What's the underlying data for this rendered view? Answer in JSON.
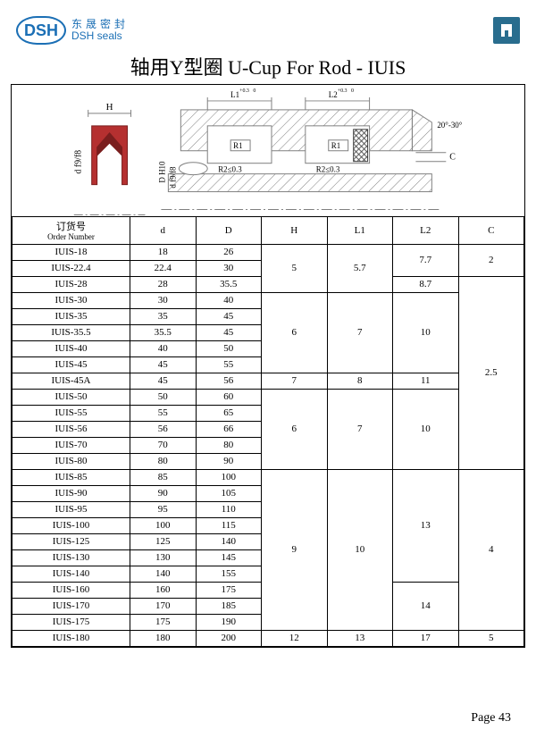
{
  "brand": {
    "abbr": "DSH",
    "cn": "东晟密封",
    "en": "DSH seals"
  },
  "title": "轴用Y型圈 U-Cup For Rod - IUIS",
  "pageLabel": "Page 43",
  "diagram": {
    "labels": {
      "H": "H",
      "d": "d",
      "D": "D H10",
      "Df9": "d   f9/f8",
      "L1": "L1",
      "L2": "L2",
      "tolL1": "+0.3\n  0",
      "tolL2": "+0.3\n  0",
      "R1": "R1",
      "R2a": "R2≤0.3",
      "R2b": "R2≤0.3",
      "angle": "20°-30°",
      "C": "C"
    },
    "colors": {
      "stroke": "#808080",
      "sealBody": "#b53030",
      "sealBodyDark": "#7a1e1e",
      "hatch": "#808080",
      "backupRingFill": "#ffffff"
    }
  },
  "table": {
    "headers": {
      "order_cn": "订货号",
      "order_en": "Order Number",
      "d": "d",
      "D": "D",
      "H": "H",
      "L1": "L1",
      "L2": "L2",
      "C": "C"
    },
    "rows": [
      {
        "order": "IUIS-18",
        "d": "18",
        "D": "26"
      },
      {
        "order": "IUIS-22.4",
        "d": "22.4",
        "D": "30"
      },
      {
        "order": "IUIS-28",
        "d": "28",
        "D": "35.5"
      },
      {
        "order": "IUIS-30",
        "d": "30",
        "D": "40"
      },
      {
        "order": "IUIS-35",
        "d": "35",
        "D": "45"
      },
      {
        "order": "IUIS-35.5",
        "d": "35.5",
        "D": "45"
      },
      {
        "order": "IUIS-40",
        "d": "40",
        "D": "50"
      },
      {
        "order": "IUIS-45",
        "d": "45",
        "D": "55"
      },
      {
        "order": "IUIS-45A",
        "d": "45",
        "D": "56"
      },
      {
        "order": "IUIS-50",
        "d": "50",
        "D": "60"
      },
      {
        "order": "IUIS-55",
        "d": "55",
        "D": "65"
      },
      {
        "order": "IUIS-56",
        "d": "56",
        "D": "66"
      },
      {
        "order": "IUIS-70",
        "d": "70",
        "D": "80"
      },
      {
        "order": "IUIS-80",
        "d": "80",
        "D": "90"
      },
      {
        "order": "IUIS-85",
        "d": "85",
        "D": "100"
      },
      {
        "order": "IUIS-90",
        "d": "90",
        "D": "105"
      },
      {
        "order": "IUIS-95",
        "d": "95",
        "D": "110"
      },
      {
        "order": "IUIS-100",
        "d": "100",
        "D": "115"
      },
      {
        "order": "IUIS-125",
        "d": "125",
        "D": "140"
      },
      {
        "order": "IUIS-130",
        "d": "130",
        "D": "145"
      },
      {
        "order": "IUIS-140",
        "d": "140",
        "D": "155"
      },
      {
        "order": "IUIS-160",
        "d": "160",
        "D": "175"
      },
      {
        "order": "IUIS-170",
        "d": "170",
        "D": "185"
      },
      {
        "order": "IUIS-175",
        "d": "175",
        "D": "190"
      },
      {
        "order": "IUIS-180",
        "d": "180",
        "D": "200"
      }
    ],
    "groups": {
      "H": [
        {
          "span": 3,
          "val": "5"
        },
        {
          "span": 5,
          "val": "6"
        },
        {
          "span": 1,
          "val": "7"
        },
        {
          "span": 5,
          "val": "6"
        },
        {
          "span": 10,
          "val": "9"
        },
        {
          "span": 1,
          "val": "12"
        }
      ],
      "L1": [
        {
          "span": 3,
          "val": "5.7"
        },
        {
          "span": 5,
          "val": "7"
        },
        {
          "span": 1,
          "val": "8"
        },
        {
          "span": 5,
          "val": "7"
        },
        {
          "span": 10,
          "val": "10"
        },
        {
          "span": 1,
          "val": "13"
        }
      ],
      "L2": [
        {
          "span": 2,
          "val": "7.7"
        },
        {
          "span": 1,
          "val": "8.7"
        },
        {
          "span": 5,
          "val": "10"
        },
        {
          "span": 1,
          "val": "11"
        },
        {
          "span": 5,
          "val": "10"
        },
        {
          "span": 7,
          "val": "13"
        },
        {
          "span": 3,
          "val": "14"
        },
        {
          "span": 1,
          "val": "17"
        }
      ],
      "C": [
        {
          "span": 2,
          "val": "2"
        },
        {
          "span": 12,
          "val": "2.5"
        },
        {
          "span": 10,
          "val": "4"
        },
        {
          "span": 1,
          "val": "5"
        }
      ]
    }
  }
}
